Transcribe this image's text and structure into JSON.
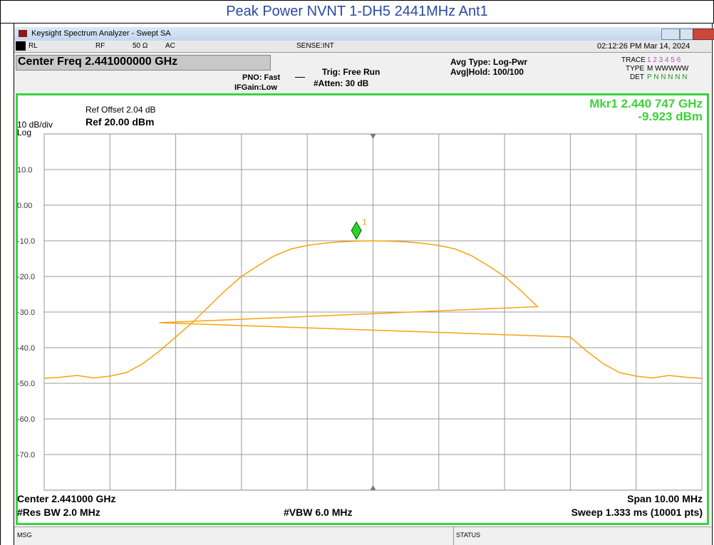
{
  "page_title": "Peak Power NVNT 1-DH5 2441MHz Ant1",
  "window": {
    "title": "Keysight Spectrum Analyzer - Swept SA"
  },
  "status_row": {
    "items": [
      "RL",
      "RF",
      "50 Ω",
      "AC",
      "SENSE:INT"
    ],
    "clock": "02:12:26 PM Mar 14, 2024"
  },
  "settings": {
    "center_freq": "Center Freq 2.441000000 GHz",
    "pno": "PNO: Fast",
    "ifgain": "IFGain:Low",
    "trig": "Trig: Free Run",
    "atten": "#Atten: 30 dB",
    "avg_type": "Avg Type: Log-Pwr",
    "avg_hold": "Avg|Hold: 100/100",
    "trace_label": "TRACE",
    "trace_nums": "1 2 3 4 5 6",
    "type_label": "TYPE",
    "type_vals": "M WWWWW",
    "det_label": "DET",
    "det_vals": "P N N N N N"
  },
  "panel": {
    "ref_offset": "Ref Offset 2.04 dB",
    "ref_level": "Ref 20.00 dBm",
    "scale": "10 dB/div",
    "scale_type": "Log",
    "marker_freq": "Mkr1 2.440 747 GHz",
    "marker_level": "-9.923 dBm",
    "center": "Center 2.441000 GHz",
    "rbw": "#Res BW 2.0 MHz",
    "vbw": "#VBW 6.0 MHz",
    "span": "Span 10.00 MHz",
    "sweep": "Sweep  1.333 ms (10001 pts)"
  },
  "bottom_bar": {
    "msg": "MSG",
    "status": "STATUS"
  },
  "chart_data": {
    "type": "line",
    "xlim": [
      2.436,
      2.446
    ],
    "ylim": [
      -80,
      20
    ],
    "xticks": [
      2.436,
      2.437,
      2.438,
      2.439,
      2.44,
      2.441,
      2.442,
      2.443,
      2.444,
      2.445,
      2.446
    ],
    "yticks": [
      {
        "value": 10,
        "label": "10.0"
      },
      {
        "value": 0,
        "label": "0.00"
      },
      {
        "value": -10,
        "label": "-10.0"
      },
      {
        "value": -20,
        "label": "-20.0"
      },
      {
        "value": -30,
        "label": "-30.0"
      },
      {
        "value": -40,
        "label": "-40.0"
      },
      {
        "value": -50,
        "label": "-50.0"
      },
      {
        "value": -60,
        "label": "-60.0"
      },
      {
        "value": -70,
        "label": "-70.0"
      }
    ],
    "grid": true,
    "series": [
      {
        "color": "#f5a30f",
        "x": [
          2.436,
          2.43625,
          2.4365,
          2.43675,
          2.437,
          2.43725,
          2.4375,
          2.43775,
          2.438,
          2.43825,
          2.4385,
          2.43875,
          2.439,
          2.43925,
          2.4395,
          2.43975,
          2.44,
          2.44025,
          2.4405,
          2.44075,
          2.441,
          2.44125,
          2.4415,
          2.44175,
          2.442,
          2.44225,
          2.4425,
          2.44275,
          2.443,
          2.44325,
          2.4435,
          2.43775,
          2.444,
          2.44425,
          2.4445,
          2.44475,
          2.445,
          2.44525,
          2.4455,
          2.44575,
          2.446
        ],
        "values": [
          -48.6,
          -48.3,
          -47.8,
          -48.5,
          -48,
          -47,
          -44.5,
          -41,
          -37,
          -33,
          -28.5,
          -24,
          -20,
          -17,
          -14.2,
          -12.3,
          -11.3,
          -10.7,
          -10.3,
          -10.1,
          -10,
          -10.1,
          -10.3,
          -10.7,
          -11.3,
          -12.3,
          -14.2,
          -17,
          -20,
          -24,
          -28.5,
          -33,
          -37,
          -41,
          -44.5,
          -47,
          -48,
          -48.5,
          -47.8,
          -48.3,
          -48.6
        ]
      }
    ],
    "marker": {
      "x": 2.440747,
      "y": -9.923,
      "label": "1"
    }
  }
}
